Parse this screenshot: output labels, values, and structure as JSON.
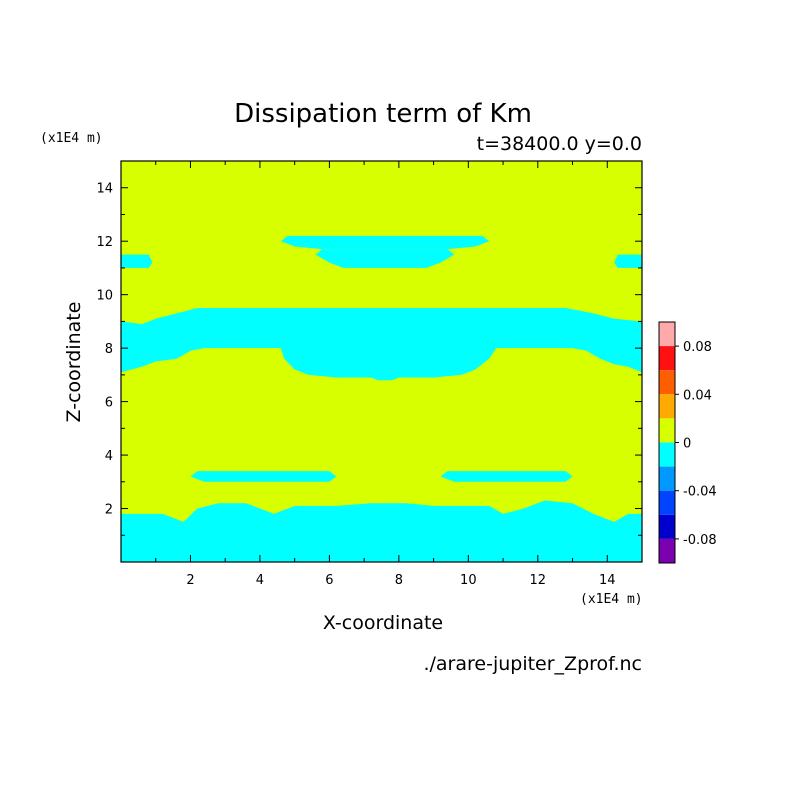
{
  "chart_data": {
    "type": "heatmap",
    "title": "Dissipation term of Km",
    "subtitle": "t=38400.0 y=0.0",
    "xlabel": "X-coordinate",
    "ylabel": "Z-coordinate",
    "x_unit": "(x1E4 m)",
    "y_unit": "(x1E4 m)",
    "source_file": "./arare-jupiter_Zprof.nc",
    "xlim": [
      0,
      15
    ],
    "ylim": [
      0,
      15
    ],
    "x_ticks": [
      "2",
      "4",
      "6",
      "8",
      "10",
      "12",
      "14"
    ],
    "y_ticks": [
      "2",
      "4",
      "6",
      "8",
      "10",
      "12",
      "14"
    ],
    "background_level_color": "#d7ff00",
    "region_level_color": "#00ffff",
    "colorbar": {
      "levels": [
        {
          "range": [
            0.08,
            0.1
          ],
          "color": "#ffaaaa"
        },
        {
          "range": [
            0.06,
            0.08
          ],
          "color": "#ff1111"
        },
        {
          "range": [
            0.04,
            0.06
          ],
          "color": "#ff5e00"
        },
        {
          "range": [
            0.02,
            0.04
          ],
          "color": "#ffaa00"
        },
        {
          "range": [
            0.0,
            0.02
          ],
          "color": "#d7ff00"
        },
        {
          "range": [
            -0.02,
            0.0
          ],
          "color": "#00ffff"
        },
        {
          "range": [
            -0.04,
            -0.02
          ],
          "color": "#0099ff"
        },
        {
          "range": [
            -0.06,
            -0.04
          ],
          "color": "#0044ff"
        },
        {
          "range": [
            -0.08,
            -0.06
          ],
          "color": "#0000cc"
        },
        {
          "range": [
            -0.1,
            -0.08
          ],
          "color": "#7a00b0"
        }
      ],
      "tick_labels": [
        "0.08",
        "0.04",
        "0",
        "-0.04",
        "-0.08"
      ],
      "tick_values": [
        0.08,
        0.04,
        0,
        -0.04,
        -0.08
      ]
    },
    "regions": [
      {
        "name": "bottom-band",
        "points": [
          [
            0,
            0
          ],
          [
            15,
            0
          ],
          [
            15,
            1.8
          ],
          [
            14.6,
            1.8
          ],
          [
            14.2,
            1.5
          ],
          [
            13.6,
            1.8
          ],
          [
            13.0,
            2.2
          ],
          [
            12.2,
            2.3
          ],
          [
            11.6,
            2.0
          ],
          [
            11.0,
            1.8
          ],
          [
            10.6,
            2.1
          ],
          [
            9.0,
            2.1
          ],
          [
            8.2,
            2.2
          ],
          [
            7.2,
            2.2
          ],
          [
            6.2,
            2.1
          ],
          [
            5.0,
            2.1
          ],
          [
            4.4,
            1.8
          ],
          [
            4.0,
            2.0
          ],
          [
            3.6,
            2.2
          ],
          [
            2.8,
            2.2
          ],
          [
            2.2,
            2.0
          ],
          [
            1.8,
            1.5
          ],
          [
            1.2,
            1.8
          ],
          [
            0,
            1.8
          ]
        ]
      },
      {
        "name": "lower-left-lens",
        "points": [
          [
            2.0,
            3.2
          ],
          [
            2.2,
            3.4
          ],
          [
            6.0,
            3.4
          ],
          [
            6.2,
            3.2
          ],
          [
            6.0,
            3.0
          ],
          [
            2.4,
            3.0
          ]
        ]
      },
      {
        "name": "lower-right-lens",
        "points": [
          [
            9.2,
            3.2
          ],
          [
            9.4,
            3.4
          ],
          [
            12.8,
            3.4
          ],
          [
            13.0,
            3.2
          ],
          [
            12.8,
            3.0
          ],
          [
            9.6,
            3.0
          ]
        ]
      },
      {
        "name": "middle-band",
        "points": [
          [
            0,
            7.1
          ],
          [
            0.6,
            7.3
          ],
          [
            1.0,
            7.5
          ],
          [
            1.6,
            7.6
          ],
          [
            2.0,
            7.9
          ],
          [
            2.4,
            8.0
          ],
          [
            4.6,
            8.0
          ],
          [
            4.7,
            7.6
          ],
          [
            5.0,
            7.2
          ],
          [
            5.4,
            7.0
          ],
          [
            6.2,
            6.9
          ],
          [
            7.2,
            6.9
          ],
          [
            7.4,
            6.8
          ],
          [
            7.8,
            6.8
          ],
          [
            8.0,
            6.9
          ],
          [
            9.0,
            6.9
          ],
          [
            9.8,
            7.0
          ],
          [
            10.2,
            7.2
          ],
          [
            10.6,
            7.6
          ],
          [
            10.8,
            8.0
          ],
          [
            13.0,
            8.0
          ],
          [
            13.4,
            7.9
          ],
          [
            13.8,
            7.6
          ],
          [
            14.2,
            7.4
          ],
          [
            14.6,
            7.3
          ],
          [
            15,
            7.1
          ],
          [
            15,
            9.0
          ],
          [
            14.2,
            9.1
          ],
          [
            13.6,
            9.3
          ],
          [
            12.8,
            9.5
          ],
          [
            2.2,
            9.5
          ],
          [
            1.6,
            9.3
          ],
          [
            1.0,
            9.1
          ],
          [
            0.6,
            8.9
          ],
          [
            0,
            9.0
          ]
        ]
      },
      {
        "name": "upper-lens",
        "points": [
          [
            4.6,
            12.0
          ],
          [
            4.8,
            12.2
          ],
          [
            10.4,
            12.2
          ],
          [
            10.6,
            12.0
          ],
          [
            10.2,
            11.8
          ],
          [
            9.4,
            11.7
          ],
          [
            8.8,
            11.7
          ],
          [
            6.6,
            11.7
          ],
          [
            5.8,
            11.7
          ],
          [
            5.0,
            11.8
          ]
        ]
      },
      {
        "name": "upper-lens-2",
        "points": [
          [
            5.6,
            11.5
          ],
          [
            5.8,
            11.7
          ],
          [
            9.4,
            11.7
          ],
          [
            9.6,
            11.5
          ],
          [
            9.2,
            11.2
          ],
          [
            8.8,
            11.0
          ],
          [
            6.4,
            11.0
          ],
          [
            6.0,
            11.2
          ]
        ]
      },
      {
        "name": "left-edge-blob",
        "points": [
          [
            0,
            11.0
          ],
          [
            0,
            11.5
          ],
          [
            0.8,
            11.5
          ],
          [
            0.9,
            11.2
          ],
          [
            0.8,
            11.0
          ]
        ]
      },
      {
        "name": "right-edge-blob",
        "points": [
          [
            14.3,
            11.0
          ],
          [
            14.2,
            11.2
          ],
          [
            14.3,
            11.5
          ],
          [
            15,
            11.5
          ],
          [
            15,
            11.0
          ]
        ]
      }
    ],
    "inner_regions": [
      {
        "name": "mid-left-notch",
        "points": [
          [
            2.6,
            7.8
          ],
          [
            2.8,
            8.0
          ],
          [
            4.4,
            8.0
          ],
          [
            4.6,
            7.8
          ],
          [
            4.4,
            7.6
          ],
          [
            3.0,
            7.6
          ]
        ]
      },
      {
        "name": "mid-right-notch",
        "points": [
          [
            10.8,
            7.8
          ],
          [
            11.0,
            8.0
          ],
          [
            12.8,
            8.0
          ],
          [
            13.0,
            7.8
          ],
          [
            12.6,
            7.6
          ],
          [
            11.2,
            7.6
          ]
        ]
      }
    ]
  }
}
